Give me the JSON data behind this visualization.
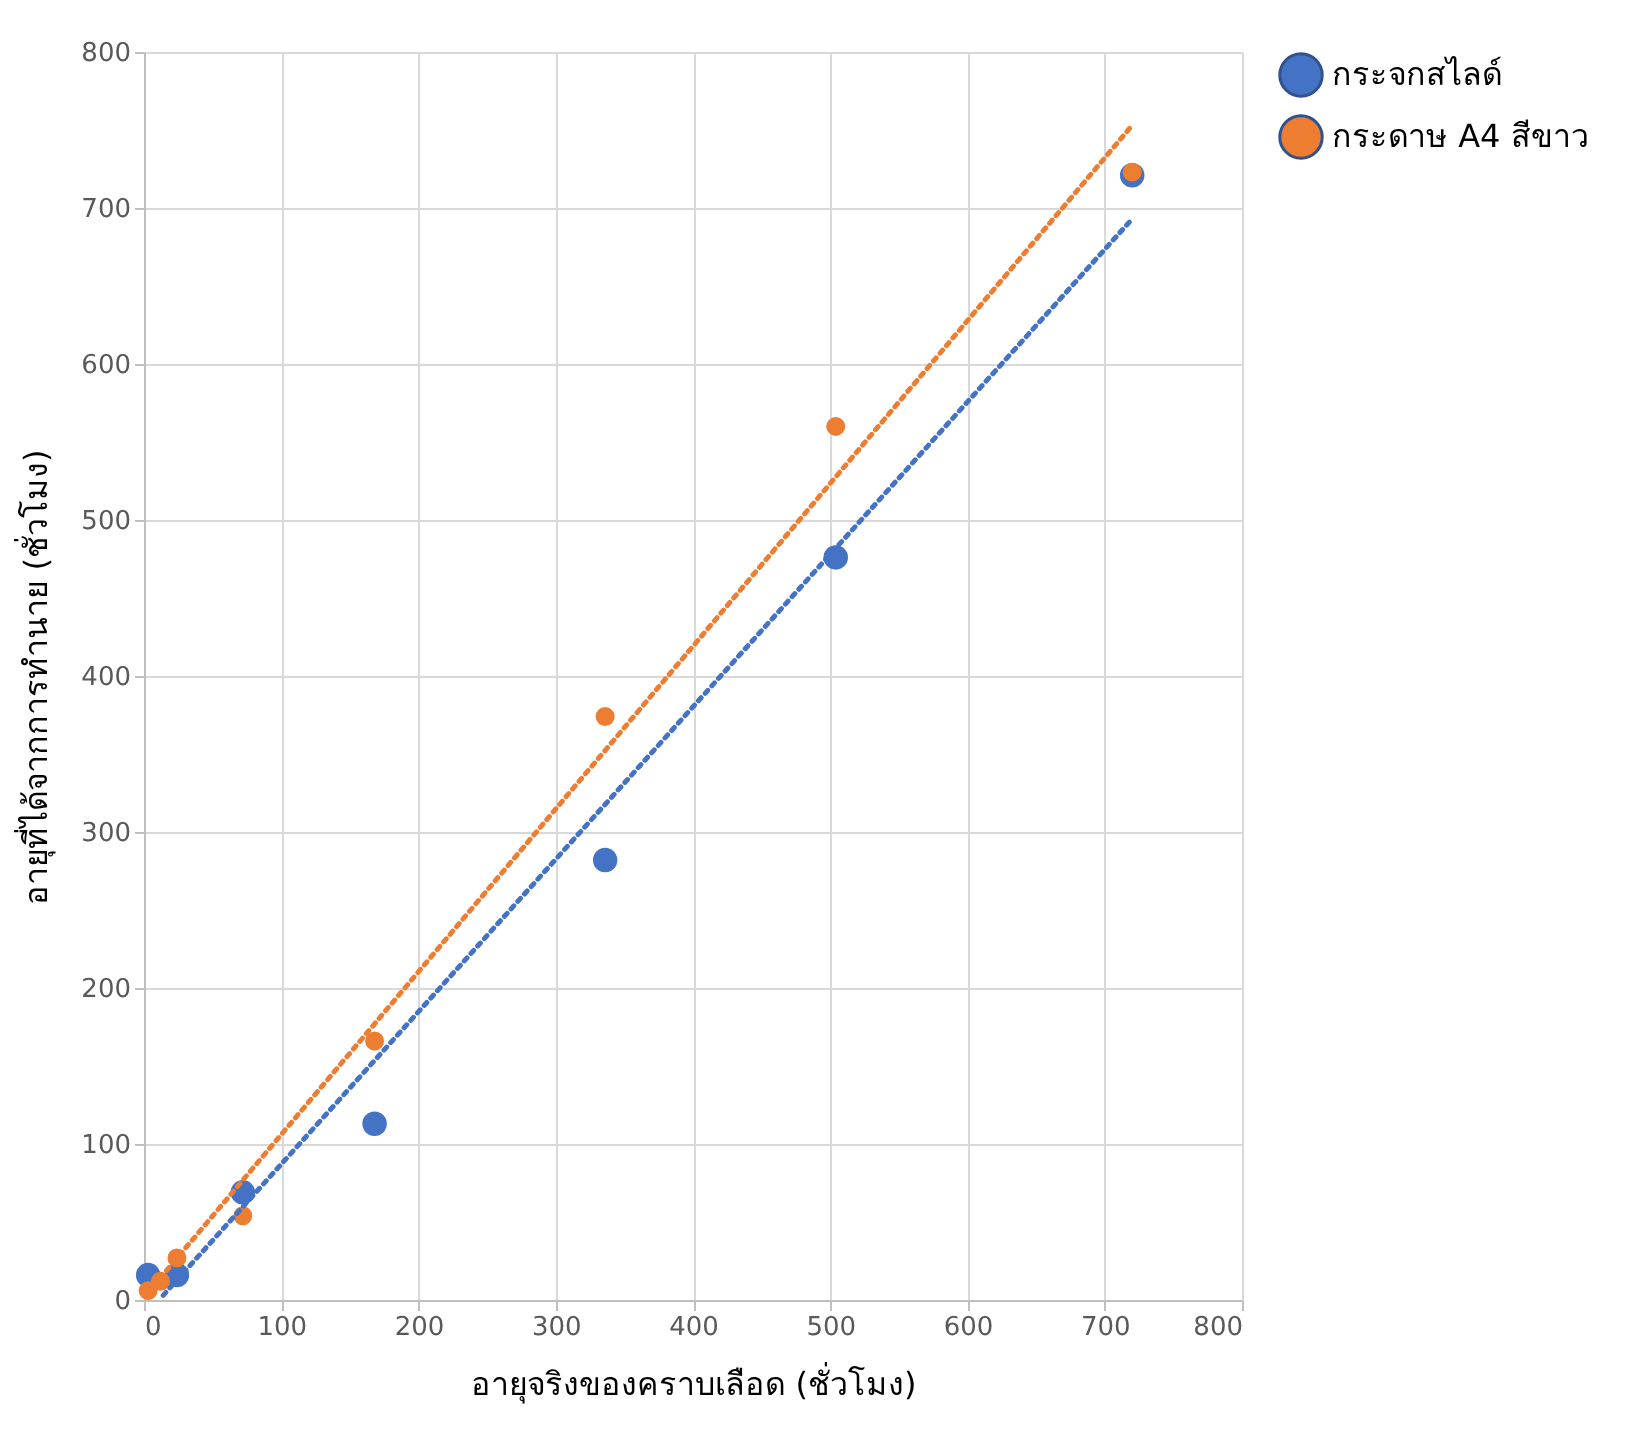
{
  "chart_data": {
    "type": "scatter",
    "xlabel": "อายุจริงของคราบเลือด (ชั่วโมง)",
    "ylabel": "อายุที่ได้จากการทำนาย (ชั่วโมง)",
    "xlim": [
      0,
      800
    ],
    "ylim": [
      0,
      800
    ],
    "xticks": [
      0,
      100,
      200,
      300,
      400,
      500,
      600,
      700,
      800
    ],
    "yticks": [
      0,
      100,
      200,
      300,
      400,
      500,
      600,
      700,
      800
    ],
    "grid": true,
    "legend": "right",
    "marker": "circle",
    "series": [
      {
        "name": "กระจกสไลด์",
        "color": "#4472c4",
        "x": [
          3,
          12,
          24,
          72,
          168,
          336,
          504,
          720
        ],
        "values": [
          16,
          null,
          16,
          69,
          113,
          282,
          476,
          721
        ]
      },
      {
        "name": "กระดาษ A4 สีขาว",
        "color": "#ed7d31",
        "x": [
          3,
          12,
          24,
          72,
          168,
          336,
          504,
          720
        ],
        "values": [
          6,
          12,
          27,
          54,
          166,
          374,
          560,
          723
        ]
      },
      {
        "color": "#4472c4",
        "type": "line",
        "line_style": "dotted",
        "marker": "none",
        "x": [
          14,
          720
        ],
        "values": [
          3,
          693
        ]
      },
      {
        "color": "#ed7d31",
        "type": "line",
        "line_style": "dotted",
        "marker": "none",
        "x": [
          7,
          720
        ],
        "values": [
          9,
          753
        ]
      }
    ]
  }
}
